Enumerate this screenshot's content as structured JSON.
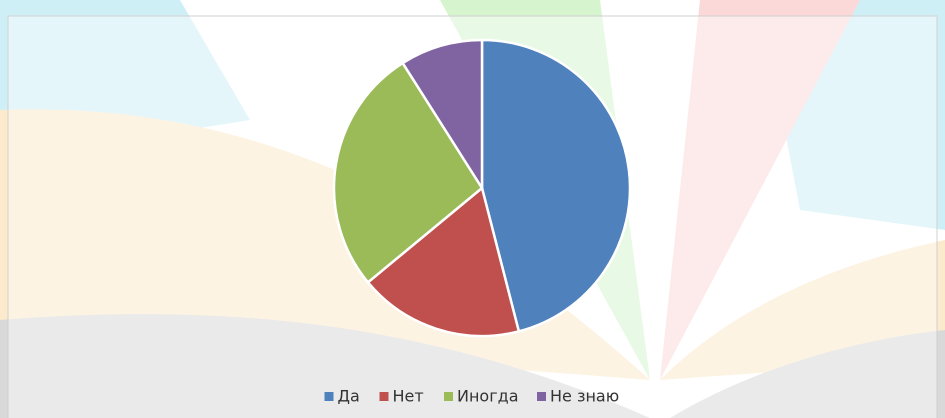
{
  "chart_data": {
    "type": "pie",
    "categories": [
      "Да",
      "Нет",
      "Иногда",
      "Не знаю"
    ],
    "values": [
      46,
      18,
      27,
      9
    ],
    "colors": [
      "#4f81bd",
      "#c0504d",
      "#9bbb59",
      "#8064a2"
    ],
    "legend": "bottom"
  }
}
